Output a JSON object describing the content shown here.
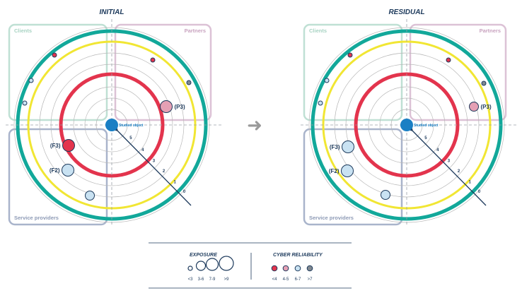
{
  "colors": {
    "clients": "#bfe0d4",
    "partners": "#dcc2d6",
    "service_providers": "#a9b4cb",
    "teal_ring": "#12a89a",
    "yellow_ring": "#f1e633",
    "red_ring": "#e3344d",
    "studied_object": "#1a7fc4",
    "arrow": "#1d3a5c",
    "reliability_lt4": "#e3344d",
    "reliability_4_5": "#e5a0b4",
    "reliability_6_7": "#c9e2f2",
    "reliability_gt7": "#808890"
  },
  "arrow_glyph": "➜",
  "panels": [
    {
      "title": "INITIAL",
      "quadrants": {
        "clients": "Clients",
        "partners": "Partners",
        "service_providers": "Service providers"
      },
      "studied_object": "Studied object",
      "ticks": [
        "0",
        "1",
        "2",
        "3",
        "4",
        "5"
      ],
      "bubbles": [
        {
          "label": "(P3)",
          "reliability": "4-5",
          "exposure": "7-9"
        },
        {
          "label": "(F3)",
          "reliability": "<4",
          "exposure": "7-9"
        },
        {
          "label": "(F2)",
          "reliability": "6-7",
          "exposure": "7-9"
        },
        {
          "label": "",
          "reliability": "6-7",
          "exposure": "3-6"
        },
        {
          "label": "",
          "reliability": "<4",
          "exposure": "<3"
        },
        {
          "label": "",
          "reliability": "<4",
          "exposure": "<3"
        },
        {
          "label": "",
          "reliability": ">7",
          "exposure": "<3"
        },
        {
          "label": "",
          "reliability": "6-7",
          "exposure": "<3"
        },
        {
          "label": "",
          "reliability": "6-7",
          "exposure": "<3"
        }
      ]
    },
    {
      "title": "RESIDUAL",
      "quadrants": {
        "clients": "Clients",
        "partners": "Partners",
        "service_providers": "Service providers"
      },
      "studied_object": "Studied object",
      "ticks": [
        "0",
        "1",
        "2",
        "3",
        "4",
        "5"
      ],
      "bubbles": [
        {
          "label": "(P3)",
          "reliability": "4-5",
          "exposure": "3-6"
        },
        {
          "label": "(F3)",
          "reliability": "6-7",
          "exposure": "7-9"
        },
        {
          "label": "(F2)",
          "reliability": "6-7",
          "exposure": "7-9"
        },
        {
          "label": "",
          "reliability": "6-7",
          "exposure": "3-6"
        },
        {
          "label": "",
          "reliability": "<4",
          "exposure": "<3"
        },
        {
          "label": "",
          "reliability": "<4",
          "exposure": "<3"
        },
        {
          "label": "",
          "reliability": ">7",
          "exposure": "<3"
        },
        {
          "label": "",
          "reliability": "6-7",
          "exposure": "<3"
        },
        {
          "label": "",
          "reliability": "6-7",
          "exposure": "<3"
        }
      ]
    }
  ],
  "legend": {
    "exposure_title": "EXPOSURE",
    "exposure_items": [
      "<3",
      "3-6",
      "7-9",
      ">9"
    ],
    "reliability_title": "CYBER RELIABILITY",
    "reliability_items": [
      "<4",
      "4-5",
      "6-7",
      ">7"
    ]
  }
}
